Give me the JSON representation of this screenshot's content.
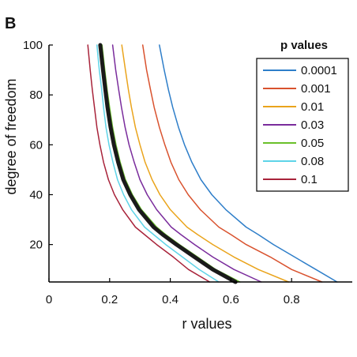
{
  "panel_label": "B",
  "chart_data": {
    "type": "line",
    "xlabel": "r values",
    "ylabel": "degree of freedom",
    "xlim": [
      0,
      1
    ],
    "ylim": [
      5,
      100
    ],
    "xticks": [
      0,
      0.2,
      0.4,
      0.6,
      0.8
    ],
    "yticks": [
      20,
      40,
      60,
      80,
      100
    ],
    "grid": false,
    "legend": {
      "title": "p values",
      "position": "top-right"
    },
    "series": [
      {
        "name": "0.0001",
        "color": "#2e7ec9",
        "width": 1.5,
        "x": [
          0.364,
          0.38,
          0.394,
          0.408,
          0.427,
          0.447,
          0.471,
          0.501,
          0.537,
          0.583,
          0.65,
          0.69,
          0.74,
          0.81,
          0.88,
          0.95
        ],
        "y": [
          100,
          90,
          82,
          75,
          67,
          60,
          53,
          46,
          40,
          34,
          27,
          24,
          20,
          15,
          10,
          5
        ]
      },
      {
        "name": "0.001",
        "color": "#d9522e",
        "width": 1.5,
        "x": [
          0.309,
          0.322,
          0.335,
          0.347,
          0.364,
          0.382,
          0.402,
          0.428,
          0.459,
          0.499,
          0.56,
          0.6,
          0.65,
          0.73,
          0.8,
          0.9
        ],
        "y": [
          100,
          90,
          82,
          75,
          67,
          60,
          53,
          46,
          40,
          34,
          27,
          24,
          20,
          15,
          10,
          5
        ]
      },
      {
        "name": "0.01",
        "color": "#eaa41c",
        "width": 1.5,
        "x": [
          0.24,
          0.252,
          0.262,
          0.272,
          0.285,
          0.3,
          0.317,
          0.34,
          0.366,
          0.4,
          0.455,
          0.49,
          0.54,
          0.61,
          0.69,
          0.79
        ],
        "y": [
          100,
          90,
          82,
          75,
          67,
          60,
          53,
          46,
          40,
          34,
          27,
          24,
          20,
          15,
          10,
          5
        ]
      },
      {
        "name": "0.03",
        "color": "#7a2c9c",
        "width": 1.5,
        "x": [
          0.21,
          0.22,
          0.23,
          0.239,
          0.251,
          0.264,
          0.281,
          0.3,
          0.324,
          0.355,
          0.403,
          0.435,
          0.48,
          0.54,
          0.61,
          0.7
        ],
        "y": [
          100,
          90,
          82,
          75,
          67,
          60,
          53,
          46,
          40,
          34,
          27,
          24,
          20,
          15,
          10,
          5
        ]
      },
      {
        "name": "0.05",
        "color": "#6ac02a",
        "width": 1.5,
        "x": [
          0.175,
          0.184,
          0.192,
          0.2,
          0.21,
          0.221,
          0.235,
          0.252,
          0.275,
          0.305,
          0.355,
          0.385,
          0.43,
          0.49,
          0.55,
          0.63
        ],
        "y": [
          100,
          90,
          82,
          75,
          67,
          60,
          53,
          46,
          40,
          34,
          27,
          24,
          20,
          15,
          10,
          5
        ]
      },
      {
        "name": "0.08",
        "color": "#5ed4e8",
        "width": 1.5,
        "x": [
          0.158,
          0.166,
          0.174,
          0.18,
          0.188,
          0.198,
          0.211,
          0.226,
          0.246,
          0.272,
          0.315,
          0.345,
          0.385,
          0.44,
          0.495,
          0.56
        ],
        "y": [
          100,
          90,
          82,
          75,
          67,
          60,
          53,
          46,
          40,
          34,
          27,
          24,
          20,
          15,
          10,
          5
        ]
      },
      {
        "name": "0.1",
        "color": "#a8233a",
        "width": 1.5,
        "x": [
          0.128,
          0.136,
          0.143,
          0.15,
          0.158,
          0.168,
          0.18,
          0.196,
          0.216,
          0.243,
          0.285,
          0.315,
          0.355,
          0.41,
          0.46,
          0.53
        ],
        "y": [
          100,
          90,
          82,
          75,
          67,
          60,
          53,
          46,
          40,
          34,
          27,
          24,
          20,
          15,
          10,
          5
        ]
      },
      {
        "name": "",
        "color": "#1a1a1a",
        "width": 5,
        "x": [
          0.169,
          0.178,
          0.186,
          0.193,
          0.203,
          0.214,
          0.228,
          0.245,
          0.268,
          0.297,
          0.345,
          0.375,
          0.42,
          0.48,
          0.54,
          0.615
        ],
        "y": [
          100,
          90,
          82,
          75,
          67,
          60,
          53,
          46,
          40,
          34,
          27,
          24,
          20,
          15,
          10,
          5
        ]
      }
    ]
  }
}
